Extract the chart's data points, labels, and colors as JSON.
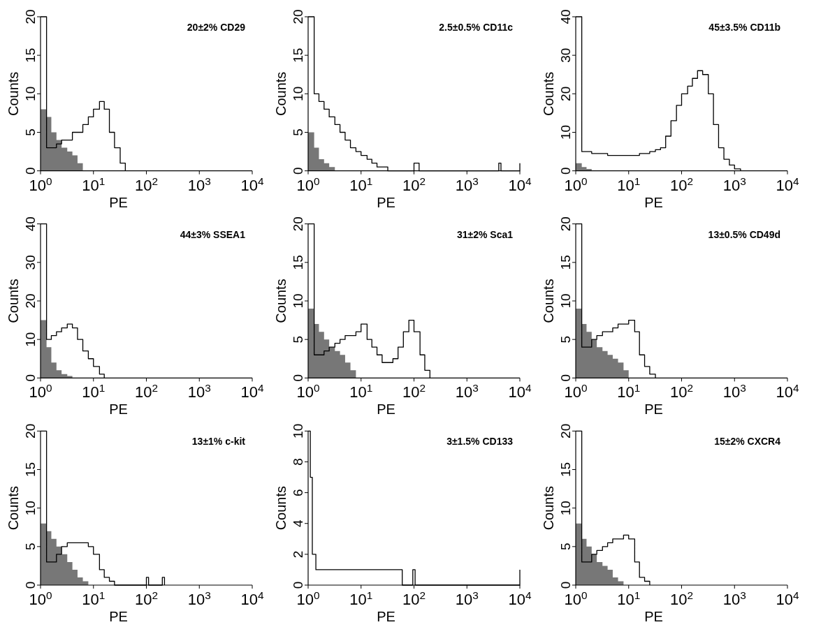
{
  "chart_data": [
    {
      "type": "step",
      "annotations": [
        "20±2% CD29"
      ],
      "xlabel": "PE",
      "ylabel": "Counts",
      "log": "x",
      "xlim": [
        1,
        10000
      ],
      "ylim": [
        0,
        20
      ],
      "yticks": [
        0,
        5,
        10,
        15,
        20
      ],
      "xticks": [
        {
          "value": 1,
          "label": "10$^{0}$"
        },
        {
          "value": 10,
          "label": "10$^{1}$"
        },
        {
          "value": 100,
          "label": "10$^{2}$"
        },
        {
          "value": 1000,
          "label": "10$^{3}$"
        },
        {
          "value": 10000,
          "label": "10$^{4}$"
        }
      ],
      "series": [
        {
          "type": "area",
          "color": "#777777",
          "x": [
            1,
            1.3,
            1.6,
            2,
            2.5,
            3.2,
            4,
            5,
            6.3
          ],
          "values": [
            8,
            7,
            5,
            4,
            3,
            2.5,
            2,
            1,
            0
          ]
        },
        {
          "color": "#000000",
          "x": [
            1,
            1.3,
            1.6,
            2,
            2.5,
            3.2,
            4,
            5,
            6.3,
            8,
            10,
            13,
            16,
            20,
            25,
            32,
            40
          ],
          "values": [
            20,
            3,
            3,
            3.5,
            4,
            4,
            5,
            5,
            6,
            7,
            8,
            9,
            8,
            5,
            3,
            1,
            0
          ]
        }
      ]
    },
    {
      "type": "step",
      "annotations": [
        "2.5±0.5% CD11c"
      ],
      "xlabel": "PE",
      "ylabel": "Counts",
      "log": "x",
      "xlim": [
        1,
        10000
      ],
      "ylim": [
        0,
        20
      ],
      "yticks": [
        0,
        5,
        10,
        15,
        20
      ],
      "xticks": [
        {
          "value": 1,
          "label": "10$^{0}$"
        },
        {
          "value": 10,
          "label": "10$^{1}$"
        },
        {
          "value": 100,
          "label": "10$^{2}$"
        },
        {
          "value": 1000,
          "label": "10$^{3}$"
        },
        {
          "value": 10000,
          "label": "10$^{4}$"
        }
      ],
      "series": [
        {
          "type": "area",
          "color": "#777777",
          "x": [
            1,
            1.3,
            1.6,
            2,
            2.5,
            3.2
          ],
          "values": [
            5,
            3,
            1.5,
            1,
            0.5,
            0
          ]
        },
        {
          "type": "step",
          "color": "#000000",
          "x": [
            1,
            1.3,
            1.6,
            2,
            2.5,
            3.2,
            4,
            5,
            6.3,
            8,
            10,
            13,
            16,
            20,
            25,
            32,
            100,
            125,
            4000,
            4400,
            9800,
            10000
          ],
          "values": [
            20,
            10,
            9,
            8,
            7,
            6,
            5,
            4,
            3,
            2.5,
            2,
            1.5,
            1,
            0.5,
            0.5,
            0,
            1,
            0,
            1,
            0,
            0,
            1
          ]
        }
      ]
    },
    {
      "type": "step",
      "annotations": [
        "45±3.5% CD11b"
      ],
      "xlabel": "PE",
      "ylabel": "Counts",
      "log": "x",
      "xlim": [
        1,
        10000
      ],
      "ylim": [
        0,
        40
      ],
      "yticks": [
        0,
        10,
        20,
        30,
        40
      ],
      "xticks": [
        {
          "value": 1,
          "label": "10$^{0}$"
        },
        {
          "value": 10,
          "label": "10$^{1}$"
        },
        {
          "value": 100,
          "label": "10$^{2}$"
        },
        {
          "value": 1000,
          "label": "10$^{3}$"
        },
        {
          "value": 10000,
          "label": "10$^{4}$"
        }
      ],
      "series": [
        {
          "type": "area",
          "color": "#777777",
          "x": [
            1,
            1.3,
            1.6,
            2
          ],
          "values": [
            2,
            1,
            0.5,
            0
          ]
        },
        {
          "type": "step",
          "color": "#000000",
          "x": [
            1,
            1.3,
            2,
            4,
            8,
            16,
            25,
            32,
            40,
            50,
            63,
            80,
            100,
            130,
            160,
            200,
            250,
            320,
            400,
            500,
            630,
            800,
            1000,
            1300
          ],
          "values": [
            40,
            5,
            4.5,
            4,
            4,
            4.5,
            5,
            5.5,
            6,
            9,
            13,
            17,
            20,
            22,
            24,
            26,
            25,
            20,
            12,
            6,
            3,
            1.5,
            0.5,
            0
          ]
        }
      ]
    },
    {
      "type": "step",
      "annotations": [
        "44±3% SSEA1"
      ],
      "xlabel": "PE",
      "ylabel": "Counts",
      "log": "x",
      "xlim": [
        1,
        10000
      ],
      "ylim": [
        0,
        40
      ],
      "yticks": [
        0,
        10,
        20,
        30,
        40
      ],
      "xticks": [
        {
          "value": 1,
          "label": "10$^{0}$"
        },
        {
          "value": 10,
          "label": "10$^{1}$"
        },
        {
          "value": 100,
          "label": "10$^{2}$"
        },
        {
          "value": 1000,
          "label": "10$^{3}$"
        },
        {
          "value": 10000,
          "label": "10$^{4}$"
        }
      ],
      "series": [
        {
          "type": "area",
          "color": "#777777",
          "x": [
            1,
            1.3,
            1.6,
            2,
            2.5,
            3.2,
            4
          ],
          "values": [
            15,
            8,
            4,
            2,
            1,
            0.5,
            0
          ]
        },
        {
          "type": "step",
          "color": "#000000",
          "x": [
            1,
            1.3,
            1.6,
            2,
            2.5,
            3.2,
            4,
            5,
            6.3,
            8,
            10,
            13,
            16
          ],
          "values": [
            40,
            10,
            11,
            12,
            13,
            14,
            13,
            10,
            7,
            5,
            3,
            1,
            0
          ]
        }
      ]
    },
    {
      "type": "step",
      "annotations": [
        "31±2% Sca1"
      ],
      "xlabel": "PE",
      "ylabel": "Counts",
      "log": "x",
      "xlim": [
        1,
        10000
      ],
      "ylim": [
        0,
        20
      ],
      "yticks": [
        0,
        5,
        10,
        15,
        20
      ],
      "xticks": [
        {
          "value": 1,
          "label": "10$^{0}$"
        },
        {
          "value": 10,
          "label": "10$^{1}$"
        },
        {
          "value": 100,
          "label": "10$^{2}$"
        },
        {
          "value": 1000,
          "label": "10$^{3}$"
        },
        {
          "value": 10000,
          "label": "10$^{4}$"
        }
      ],
      "series": [
        {
          "type": "area",
          "color": "#777777",
          "x": [
            1,
            1.3,
            1.6,
            2,
            2.5,
            3.2,
            4,
            5,
            6.3,
            8
          ],
          "values": [
            9,
            7,
            6,
            5,
            4,
            3.5,
            3,
            2,
            1,
            0
          ]
        },
        {
          "type": "step",
          "color": "#000000",
          "x": [
            1,
            1.3,
            1.6,
            2,
            2.5,
            3.2,
            4,
            5,
            6.3,
            8,
            10,
            13,
            16,
            20,
            25,
            32,
            40,
            50,
            63,
            80,
            100,
            130,
            160,
            200
          ],
          "values": [
            20,
            3,
            3,
            3.5,
            4,
            4.5,
            5,
            5.5,
            5.5,
            6,
            7,
            5,
            4,
            3,
            2,
            2,
            2.5,
            4,
            6,
            7.5,
            6,
            3,
            1,
            0
          ]
        }
      ]
    },
    {
      "type": "step",
      "annotations": [
        "13±0.5% CD49d"
      ],
      "xlabel": "PE",
      "ylabel": "Counts",
      "log": "x",
      "xlim": [
        1,
        10000
      ],
      "ylim": [
        0,
        20
      ],
      "yticks": [
        0,
        5,
        10,
        15,
        20
      ],
      "xticks": [
        {
          "value": 1,
          "label": "10$^{0}$"
        },
        {
          "value": 10,
          "label": "10$^{1}$"
        },
        {
          "value": 100,
          "label": "10$^{2}$"
        },
        {
          "value": 1000,
          "label": "10$^{3}$"
        },
        {
          "value": 10000,
          "label": "10$^{4}$"
        }
      ],
      "series": [
        {
          "type": "area",
          "color": "#777777",
          "x": [
            1,
            1.3,
            1.6,
            2,
            2.5,
            3.2,
            4,
            5,
            6.3,
            8,
            10
          ],
          "values": [
            9,
            7,
            6,
            5,
            4,
            3.5,
            3,
            2.5,
            2,
            1,
            0
          ]
        },
        {
          "type": "step",
          "color": "#000000",
          "x": [
            1,
            1.3,
            1.6,
            2,
            2.5,
            3.2,
            4,
            5,
            6.3,
            8,
            10,
            13,
            16,
            20,
            25,
            32
          ],
          "values": [
            20,
            4,
            4,
            5,
            5.5,
            6,
            6,
            6.5,
            7,
            7,
            7.5,
            6,
            3,
            1.5,
            0.5,
            0
          ]
        }
      ]
    },
    {
      "type": "step",
      "annotations": [
        "13±1% c-kit"
      ],
      "xlabel": "PE",
      "ylabel": "Counts",
      "log": "x",
      "xlim": [
        1,
        10000
      ],
      "ylim": [
        0,
        20
      ],
      "yticks": [
        0,
        5,
        10,
        15,
        20
      ],
      "xticks": [
        {
          "value": 1,
          "label": "10$^{0}$"
        },
        {
          "value": 10,
          "label": "10$^{1}$"
        },
        {
          "value": 100,
          "label": "10$^{2}$"
        },
        {
          "value": 1000,
          "label": "10$^{3}$"
        },
        {
          "value": 10000,
          "label": "10$^{4}$"
        }
      ],
      "series": [
        {
          "type": "area",
          "color": "#777777",
          "x": [
            1,
            1.3,
            1.6,
            2,
            2.5,
            3.2,
            4,
            5,
            6.3,
            8
          ],
          "values": [
            8,
            7,
            6,
            5,
            4,
            3,
            2,
            1,
            0.5,
            0
          ]
        },
        {
          "type": "step",
          "color": "#000000",
          "x": [
            1,
            1.3,
            1.6,
            2,
            2.5,
            3.2,
            4,
            5,
            6.3,
            8,
            10,
            13,
            16,
            20,
            25,
            100,
            110,
            200,
            220
          ],
          "values": [
            20,
            3,
            3,
            4,
            5,
            5.5,
            5.5,
            5.5,
            5.5,
            5,
            4,
            2,
            1,
            0.5,
            0,
            1,
            0,
            1,
            0
          ]
        }
      ]
    },
    {
      "type": "step",
      "annotations": [
        "3±1.5% CD133"
      ],
      "xlabel": "PE",
      "ylabel": "Counts",
      "log": "x",
      "xlim": [
        1,
        10000
      ],
      "ylim": [
        0,
        10
      ],
      "yticks": [
        0,
        2,
        4,
        6,
        8,
        10
      ],
      "xticks": [
        {
          "value": 1,
          "label": "10$^{0}$"
        },
        {
          "value": 10,
          "label": "10$^{1}$"
        },
        {
          "value": 100,
          "label": "10$^{2}$"
        },
        {
          "value": 1000,
          "label": "10$^{3}$"
        },
        {
          "value": 10000,
          "label": "10$^{4}$"
        }
      ],
      "series": [
        {
          "type": "step",
          "color": "#000000",
          "x": [
            1,
            1.1,
            1.2,
            1.4,
            60,
            95,
            105,
            9800,
            10000
          ],
          "values": [
            10,
            7,
            2,
            1,
            0,
            1,
            0,
            0,
            1
          ]
        }
      ]
    },
    {
      "type": "step",
      "annotations": [
        "15±2% CXCR4"
      ],
      "xlabel": "PE",
      "ylabel": "Counts",
      "log": "x",
      "xlim": [
        1,
        10000
      ],
      "ylim": [
        0,
        20
      ],
      "yticks": [
        0,
        5,
        10,
        15,
        20
      ],
      "xticks": [
        {
          "value": 1,
          "label": "10$^{0}$"
        },
        {
          "value": 10,
          "label": "10$^{1}$"
        },
        {
          "value": 100,
          "label": "10$^{2}$"
        },
        {
          "value": 1000,
          "label": "10$^{3}$"
        },
        {
          "value": 10000,
          "label": "10$^{4}$"
        }
      ],
      "series": [
        {
          "type": "area",
          "color": "#777777",
          "x": [
            1,
            1.3,
            1.6,
            2,
            2.5,
            3.2,
            4,
            5,
            6.3,
            8
          ],
          "values": [
            8,
            6,
            5,
            4,
            3,
            2.5,
            2,
            1,
            0.5,
            0
          ]
        },
        {
          "type": "step",
          "color": "#000000",
          "x": [
            1,
            1.3,
            1.6,
            2,
            2.5,
            3.2,
            4,
            5,
            6.3,
            8,
            10,
            13,
            16,
            20,
            25
          ],
          "values": [
            20,
            3,
            3,
            4,
            4.5,
            5,
            5.5,
            6,
            6,
            6.5,
            6,
            3,
            1,
            0.5,
            0
          ]
        }
      ]
    }
  ]
}
